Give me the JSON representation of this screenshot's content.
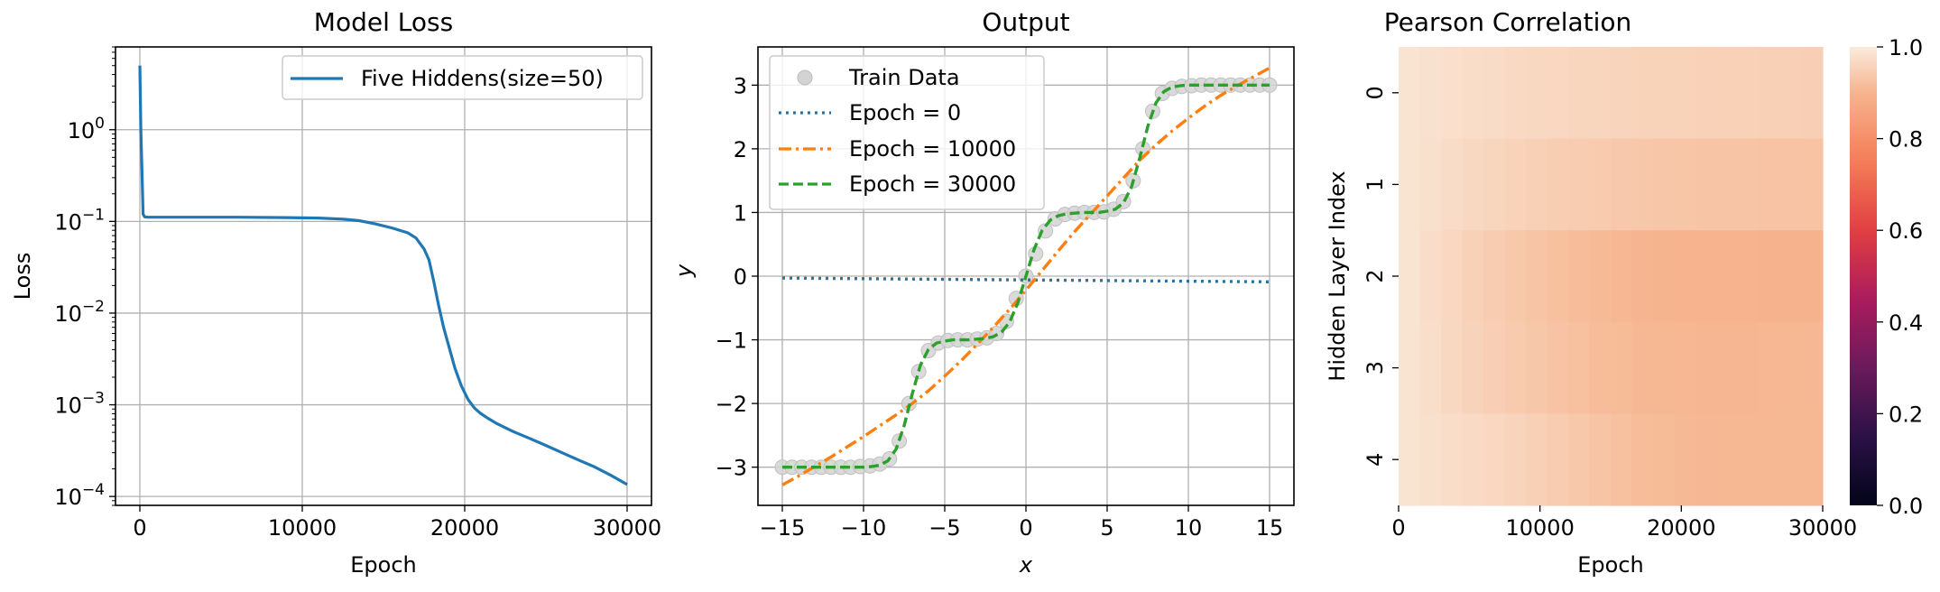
{
  "chart_data": [
    {
      "type": "line",
      "title": "Model Loss",
      "xlabel": "Epoch",
      "ylabel": "Loss",
      "yscale": "log",
      "xlim": [
        -1500,
        31500
      ],
      "ylim": [
        8e-05,
        8
      ],
      "xticks": [
        0,
        10000,
        20000,
        30000
      ],
      "xtick_labels": [
        "0",
        "10000",
        "20000",
        "30000"
      ],
      "yticks": [
        1,
        0.1,
        0.01,
        0.001,
        0.0001
      ],
      "ytick_labels": [
        {
          "base": "10",
          "exp": "0"
        },
        {
          "base": "10",
          "exp": "−1"
        },
        {
          "base": "10",
          "exp": "−2"
        },
        {
          "base": "10",
          "exp": "−3"
        },
        {
          "base": "10",
          "exp": "−4"
        }
      ],
      "grid": true,
      "legend_position": "upper right",
      "series": [
        {
          "name": "Five Hiddens(size=50)",
          "color": "#1f77b4",
          "x": [
            0,
            60,
            120,
            200,
            300,
            500,
            1000,
            3000,
            6000,
            9000,
            11000,
            12500,
            13500,
            14500,
            15500,
            16500,
            17000,
            17500,
            17800,
            18100,
            18400,
            18700,
            19000,
            19400,
            19800,
            20200,
            20600,
            21000,
            21500,
            22000,
            23000,
            24000,
            25000,
            26000,
            27000,
            28000,
            29000,
            30000
          ],
          "y": [
            5.0,
            1.0,
            0.4,
            0.12,
            0.112,
            0.111,
            0.111,
            0.111,
            0.111,
            0.11,
            0.109,
            0.106,
            0.102,
            0.094,
            0.085,
            0.075,
            0.066,
            0.05,
            0.038,
            0.022,
            0.012,
            0.007,
            0.0045,
            0.0025,
            0.0016,
            0.00115,
            0.00092,
            0.0008,
            0.0007,
            0.00062,
            0.00051,
            0.00043,
            0.00036,
            0.0003,
            0.00025,
            0.00021,
            0.00017,
            0.000135
          ]
        }
      ]
    },
    {
      "type": "line",
      "title": "Output",
      "xlabel": "x",
      "ylabel": "y",
      "xlim": [
        -16.5,
        16.5
      ],
      "ylim": [
        -3.6,
        3.6
      ],
      "xticks": [
        -15,
        -10,
        -5,
        0,
        5,
        10,
        15
      ],
      "xtick_labels": [
        "−15",
        "−10",
        "−5",
        "0",
        "5",
        "10",
        "15"
      ],
      "yticks": [
        -3,
        -2,
        -1,
        0,
        1,
        2,
        3
      ],
      "ytick_labels": [
        "−3",
        "−2",
        "−1",
        "0",
        "1",
        "2",
        "3"
      ],
      "grid": true,
      "legend_position": "upper left",
      "series": [
        {
          "name": "Train Data",
          "style": "markers",
          "color": "#d3d3d3",
          "x": [
            -15,
            -14.4,
            -13.8,
            -13.2,
            -12.6,
            -12,
            -11.4,
            -10.8,
            -10.2,
            -9.6,
            -9,
            -8.4,
            -7.8,
            -7.2,
            -6.6,
            -6,
            -5.4,
            -4.8,
            -4.2,
            -3.6,
            -3,
            -2.4,
            -1.8,
            -1.2,
            -0.6,
            0,
            0.6,
            1.2,
            1.8,
            2.4,
            3,
            3.6,
            4.2,
            4.8,
            5.4,
            6,
            6.6,
            7.2,
            7.8,
            8.4,
            9,
            9.6,
            10.2,
            10.8,
            11.4,
            12,
            12.6,
            13.2,
            13.8,
            14.4,
            15
          ],
          "y": [
            -3,
            -3,
            -3,
            -3,
            -3,
            -3,
            -3,
            -3,
            -2.99,
            -2.98,
            -2.95,
            -2.87,
            -2.59,
            -2.0,
            -1.5,
            -1.17,
            -1.05,
            -1.01,
            -1.0,
            -1.0,
            -0.99,
            -0.97,
            -0.9,
            -0.71,
            -0.35,
            0.0,
            0.35,
            0.71,
            0.9,
            0.97,
            0.99,
            1.0,
            1.0,
            1.01,
            1.05,
            1.17,
            1.5,
            2.0,
            2.59,
            2.87,
            2.95,
            2.98,
            2.99,
            3,
            3,
            3,
            3,
            3,
            3,
            3,
            3
          ]
        },
        {
          "name": "Epoch = 0",
          "style": "dotted",
          "color": "#1f77b4",
          "x": [
            -15,
            15
          ],
          "y": [
            -0.03,
            -0.09
          ]
        },
        {
          "name": "Epoch = 10000",
          "style": "dashdot",
          "color": "#ff7f0e",
          "x": [
            -15,
            -14,
            -13,
            -12,
            -11,
            -10,
            -9,
            -8,
            -7,
            -6,
            -5,
            -4,
            -3,
            -2,
            -1,
            0,
            1,
            2,
            3,
            4,
            5,
            6,
            7,
            8,
            9,
            10,
            11,
            12,
            13,
            14,
            15
          ],
          "y": [
            -3.28,
            -3.14,
            -2.99,
            -2.84,
            -2.68,
            -2.52,
            -2.35,
            -2.18,
            -2.0,
            -1.8,
            -1.57,
            -1.33,
            -1.07,
            -0.8,
            -0.52,
            -0.22,
            0.09,
            0.4,
            0.7,
            0.98,
            1.26,
            1.54,
            1.82,
            2.06,
            2.28,
            2.48,
            2.67,
            2.84,
            2.99,
            3.13,
            3.27
          ]
        },
        {
          "name": "Epoch = 30000",
          "style": "dashed",
          "color": "#2ca02c",
          "x": [
            -15,
            -14,
            -13,
            -12,
            -11,
            -10,
            -9.5,
            -9,
            -8.5,
            -8,
            -7.5,
            -7,
            -6.5,
            -6,
            -5.5,
            -5,
            -4.5,
            -4,
            -3.5,
            -3,
            -2.5,
            -2,
            -1.5,
            -1,
            -0.5,
            0,
            0.5,
            1,
            1.5,
            2,
            2.5,
            3,
            3.5,
            4,
            4.5,
            5,
            5.5,
            6,
            6.5,
            7,
            7.5,
            8,
            8.5,
            9,
            9.5,
            10,
            11,
            12,
            13,
            14,
            15
          ],
          "y": [
            -3.0,
            -3.0,
            -3.0,
            -3.0,
            -3.0,
            -3.0,
            -2.99,
            -2.97,
            -2.9,
            -2.72,
            -2.35,
            -1.85,
            -1.4,
            -1.15,
            -1.05,
            -1.02,
            -1.0,
            -1.0,
            -1.0,
            -0.99,
            -0.98,
            -0.95,
            -0.88,
            -0.72,
            -0.42,
            0.0,
            0.42,
            0.72,
            0.88,
            0.95,
            0.98,
            0.99,
            1.0,
            1.0,
            1.0,
            1.02,
            1.05,
            1.15,
            1.4,
            1.85,
            2.35,
            2.72,
            2.9,
            2.97,
            2.99,
            3.0,
            3.0,
            3.0,
            3.0,
            3.0,
            3.0
          ]
        }
      ]
    },
    {
      "type": "heatmap",
      "title": "Pearson Correlation",
      "xlabel": "Epoch",
      "ylabel": "Hidden Layer Index",
      "xlim": [
        0,
        30000
      ],
      "xticks": [
        0,
        10000,
        20000,
        30000
      ],
      "xtick_labels": [
        "0",
        "10000",
        "20000",
        "30000"
      ],
      "rows": [
        "0",
        "1",
        "2",
        "3",
        "4"
      ],
      "colorbar": {
        "range": [
          0,
          1
        ],
        "ticks": [
          0,
          0.2,
          0.4,
          0.6,
          0.8,
          1.0
        ],
        "tick_labels": [
          "0.0",
          "0.2",
          "0.4",
          "0.6",
          "0.8",
          "1.0"
        ],
        "colormap": "rocket"
      },
      "values": [
        [
          0.985,
          0.982,
          0.978,
          0.975,
          0.972,
          0.968,
          0.965,
          0.963,
          0.961,
          0.96,
          0.958,
          0.956,
          0.955,
          0.954,
          0.953,
          0.952,
          0.952,
          0.951,
          0.951,
          0.95
        ],
        [
          0.985,
          0.98,
          0.973,
          0.966,
          0.96,
          0.955,
          0.951,
          0.947,
          0.944,
          0.94,
          0.937,
          0.935,
          0.933,
          0.932,
          0.931,
          0.93,
          0.929,
          0.928,
          0.928,
          0.927
        ],
        [
          0.985,
          0.975,
          0.963,
          0.952,
          0.944,
          0.936,
          0.929,
          0.922,
          0.915,
          0.91,
          0.905,
          0.902,
          0.9,
          0.898,
          0.897,
          0.896,
          0.896,
          0.895,
          0.895,
          0.895
        ],
        [
          0.985,
          0.976,
          0.966,
          0.957,
          0.949,
          0.942,
          0.935,
          0.928,
          0.922,
          0.917,
          0.912,
          0.908,
          0.906,
          0.905,
          0.904,
          0.904,
          0.904,
          0.905,
          0.906,
          0.907
        ],
        [
          0.985,
          0.98,
          0.975,
          0.97,
          0.964,
          0.958,
          0.951,
          0.944,
          0.936,
          0.929,
          0.922,
          0.916,
          0.912,
          0.909,
          0.907,
          0.906,
          0.906,
          0.906,
          0.906,
          0.906
        ]
      ]
    }
  ]
}
